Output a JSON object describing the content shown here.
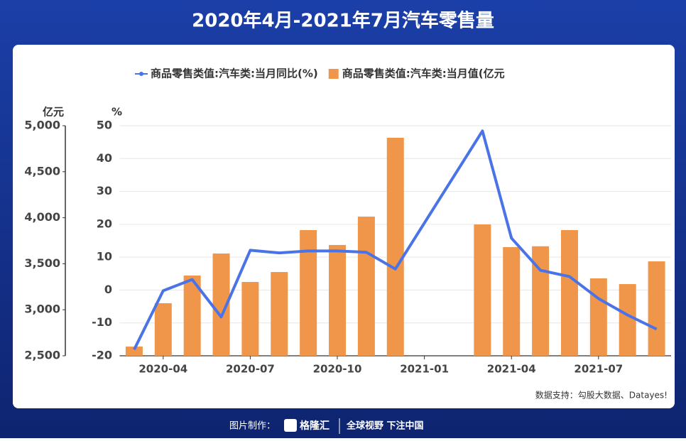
{
  "chart_data": {
    "type": "bar-line",
    "title": "2020年4月-2021年7月汽车零售量",
    "y_unit": "亿元",
    "y2_unit": "%",
    "categories": [
      null,
      "2020-04",
      null,
      null,
      "2020-07",
      null,
      null,
      "2020-10",
      null,
      null,
      "2021-01",
      null,
      null,
      "2021-04",
      null,
      null,
      "2021-07",
      null,
      null
    ],
    "series": [
      {
        "name": "商品零售类值:汽车类:当月同比(%)",
        "color": "#4a73e8",
        "axis": "y2",
        "kind": "line",
        "span_gaps": true,
        "values": [
          -18.1,
          -0.2,
          3.2,
          -8.2,
          12.1,
          11.3,
          11.9,
          11.9,
          11.5,
          6.4,
          null,
          null,
          48.4,
          15.8,
          6.0,
          4.1,
          -2.6,
          -7.6,
          -11.9
        ]
      },
      {
        "name": "商品零售类值:汽车类:当月值(亿元",
        "color": "#f0964a",
        "axis": "y",
        "kind": "bar",
        "values": [
          2600,
          3071,
          3372,
          3611,
          3302,
          3410,
          3866,
          3704,
          4012,
          4869,
          null,
          null,
          3927,
          3681,
          3690,
          3866,
          3341,
          3279,
          3526
        ]
      }
    ],
    "ylim": [
      2500,
      5000
    ],
    "yticks": [
      {
        "value": 2500,
        "label": "2,500"
      },
      {
        "value": 3000,
        "label": "3,000"
      },
      {
        "value": 3500,
        "label": "3,500"
      },
      {
        "value": 4000,
        "label": "4,000"
      },
      {
        "value": 4500,
        "label": "4,500"
      },
      {
        "value": 5000,
        "label": "5,000"
      }
    ],
    "y2lim": [
      -20,
      50
    ],
    "y2ticks": [
      -20,
      -10,
      0,
      10,
      20,
      30,
      40,
      50
    ],
    "grid": true,
    "legend": "top",
    "source": "数据支持：勾股大数据、Datayes!",
    "footer": {
      "made_by": "图片制作：",
      "brand": "格隆汇",
      "slogan": "全球视野 下注中国"
    }
  }
}
